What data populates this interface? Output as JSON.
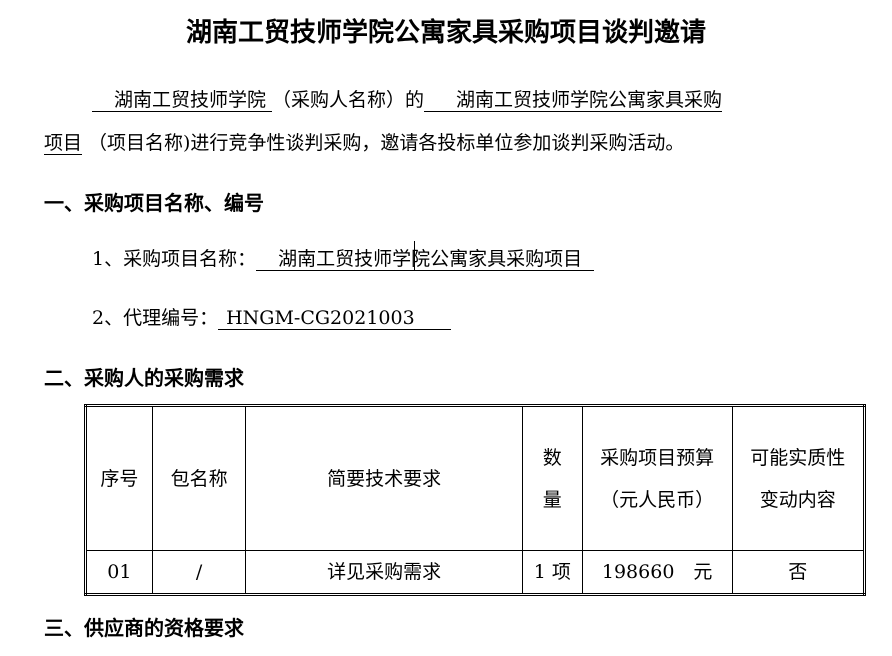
{
  "title": "湖南工贸技师学院公寓家具采购项目谈判邀请",
  "intro": {
    "purchaser": "湖南工贸技师学院",
    "purchaser_note": "（采购人名称）的",
    "project_part1": "湖南工贸技师学院公寓家具采购",
    "project_part2": "项目",
    "rest": "（项目名称)进行竞争性谈判采购，邀请各投标单位参加谈判采购活动。"
  },
  "section1": {
    "heading": "一、采购项目名称、编号",
    "item1_label": "1、采购项目名称：",
    "item1_value": "湖南工贸技师学院公寓家具采购项目",
    "item2_label": "2、代理编号：",
    "item2_value": "HNGM-CG2021003"
  },
  "section2": {
    "heading": "二、采购人的采购需求",
    "table": {
      "headers": [
        "序号",
        "包名称",
        "简要技术要求",
        "数量",
        "采购项目预算（元人民币）",
        "可能实质性变动内容"
      ],
      "rows": [
        [
          "01",
          "/",
          "详见采购需求",
          "1 项",
          "198660　元",
          "否"
        ]
      ]
    }
  },
  "section3": {
    "heading": "三、供应商的资格要求"
  }
}
